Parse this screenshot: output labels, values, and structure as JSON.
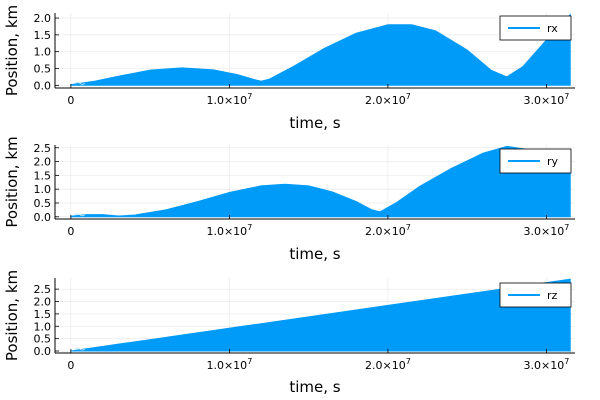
{
  "chart_data": [
    {
      "type": "area",
      "legend": "rx",
      "legend_position": "top-right",
      "xlabel": "time, s",
      "ylabel": "Position, km",
      "xlim": [
        -1000000,
        31800000
      ],
      "ylim": [
        -0.08,
        2.15
      ],
      "grid": true,
      "color": "#009af9",
      "yticks": [
        0.0,
        0.5,
        1.0,
        1.5,
        2.0
      ],
      "yticklabels": [
        "0.0",
        "0.5",
        "1.0",
        "1.5",
        "2.0"
      ],
      "xticks": [
        {
          "value": 0,
          "label": "0",
          "exp": ""
        },
        {
          "value": 10000000,
          "label": "1.0×10",
          "exp": "7"
        },
        {
          "value": 20000000,
          "label": "2.0×10",
          "exp": "7"
        },
        {
          "value": 30000000,
          "label": "3.0×10",
          "exp": "7"
        }
      ],
      "envelope": {
        "x": [
          0,
          1500000,
          3000000,
          5000000,
          7000000,
          9000000,
          10500000,
          11500000,
          12000000,
          12500000,
          14000000,
          16000000,
          18000000,
          20000000,
          21500000,
          23000000,
          25000000,
          26500000,
          27500000,
          28500000,
          30000000,
          31500000
        ],
        "y": [
          0.02,
          0.12,
          0.27,
          0.45,
          0.52,
          0.46,
          0.32,
          0.18,
          0.12,
          0.18,
          0.55,
          1.1,
          1.55,
          1.8,
          1.8,
          1.62,
          1.05,
          0.45,
          0.25,
          0.55,
          1.35,
          2.1
        ]
      }
    },
    {
      "type": "area",
      "legend": "ry",
      "legend_position": "top-right",
      "xlabel": "time, s",
      "ylabel": "Position, km",
      "xlim": [
        -1000000,
        31800000
      ],
      "ylim": [
        -0.08,
        2.6
      ],
      "grid": true,
      "color": "#009af9",
      "yticks": [
        0.0,
        0.5,
        1.0,
        1.5,
        2.0,
        2.5
      ],
      "yticklabels": [
        "0.0",
        "0.5",
        "1.0",
        "1.5",
        "2.0",
        "2.5"
      ],
      "xticks": [
        {
          "value": 0,
          "label": "0",
          "exp": ""
        },
        {
          "value": 10000000,
          "label": "1.0×10",
          "exp": "7"
        },
        {
          "value": 20000000,
          "label": "2.0×10",
          "exp": "7"
        },
        {
          "value": 30000000,
          "label": "3.0×10",
          "exp": "7"
        }
      ],
      "envelope": {
        "x": [
          0,
          1000000,
          2000000,
          3000000,
          4000000,
          6000000,
          8000000,
          10000000,
          12000000,
          13500000,
          15000000,
          16500000,
          18000000,
          19000000,
          19500000,
          20500000,
          22000000,
          24000000,
          26000000,
          27500000,
          29000000,
          30500000,
          31500000
        ],
        "y": [
          0.02,
          0.08,
          0.08,
          0.03,
          0.06,
          0.25,
          0.55,
          0.88,
          1.12,
          1.18,
          1.12,
          0.9,
          0.55,
          0.25,
          0.18,
          0.5,
          1.1,
          1.75,
          2.3,
          2.55,
          2.42,
          2.15,
          1.95
        ]
      }
    },
    {
      "type": "area",
      "legend": "rz",
      "legend_position": "top-right",
      "xlabel": "time, s",
      "ylabel": "Position, km",
      "xlim": [
        -1000000,
        31800000
      ],
      "ylim": [
        -0.08,
        2.95
      ],
      "grid": true,
      "color": "#009af9",
      "yticks": [
        0.0,
        0.5,
        1.0,
        1.5,
        2.0,
        2.5
      ],
      "yticklabels": [
        "0.0",
        "0.5",
        "1.0",
        "1.5",
        "2.0",
        "2.5"
      ],
      "xticks": [
        {
          "value": 0,
          "label": "0",
          "exp": ""
        },
        {
          "value": 10000000,
          "label": "1.0×10",
          "exp": "7"
        },
        {
          "value": 20000000,
          "label": "2.0×10",
          "exp": "7"
        },
        {
          "value": 30000000,
          "label": "3.0×10",
          "exp": "7"
        }
      ],
      "envelope": {
        "x": [
          0,
          31500000
        ],
        "y": [
          0.0,
          2.9
        ]
      }
    }
  ]
}
